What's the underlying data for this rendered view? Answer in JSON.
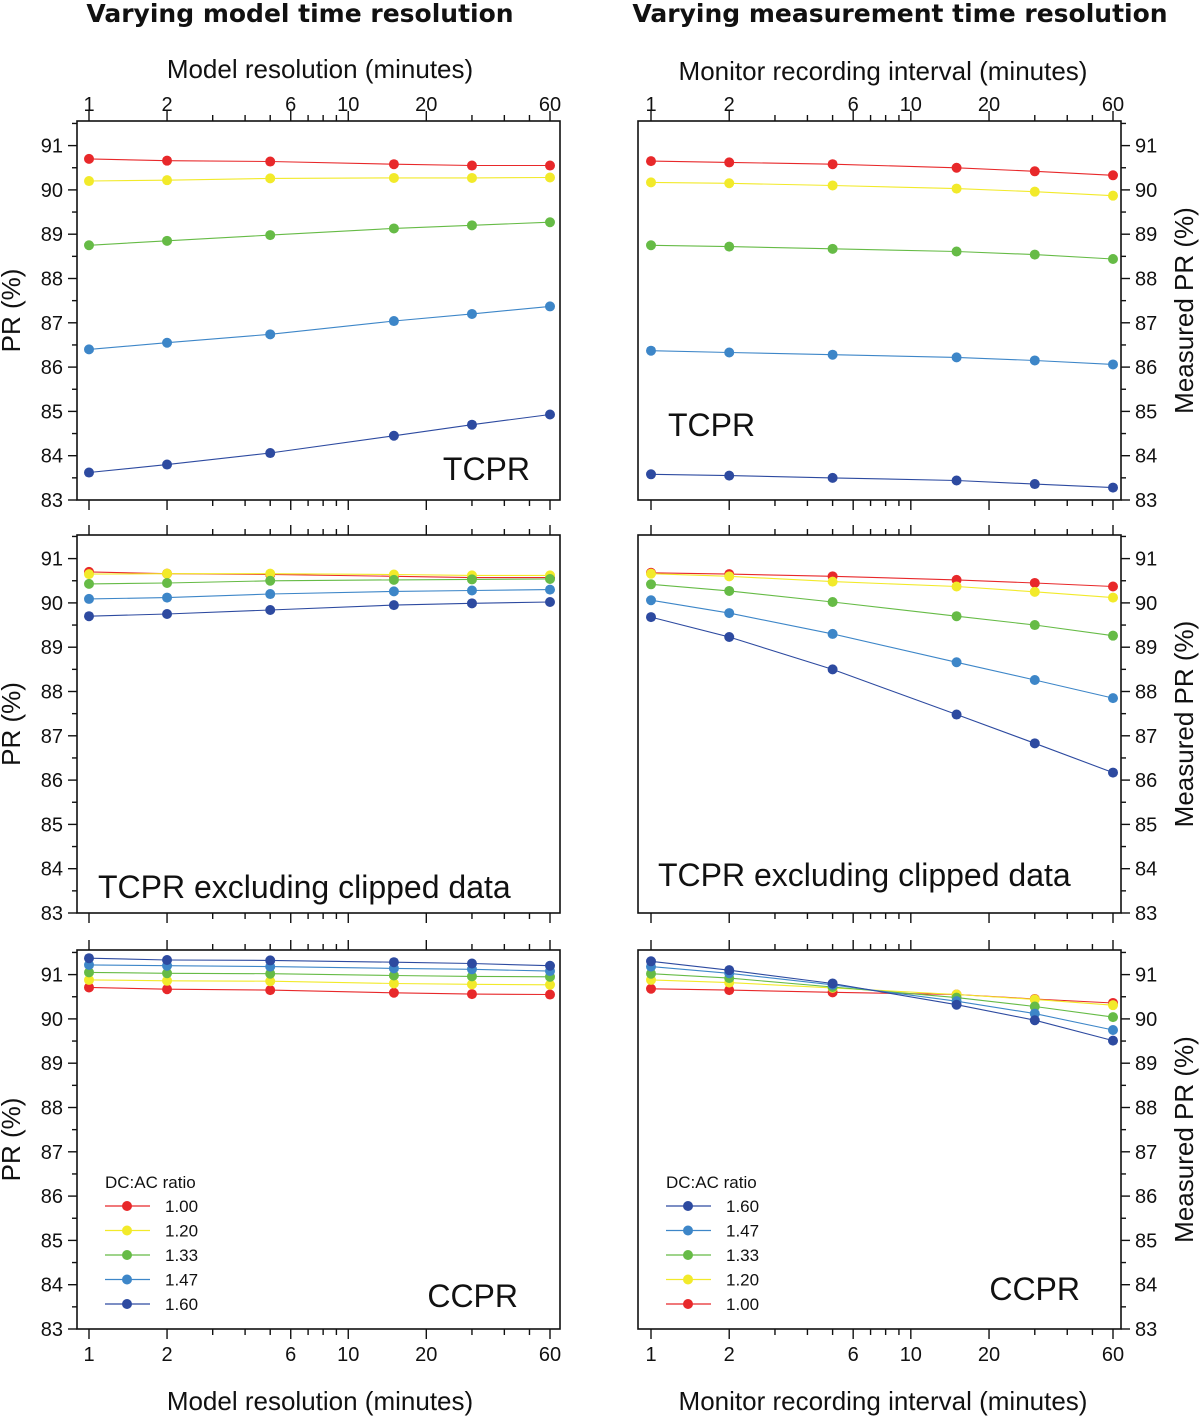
{
  "colors": {
    "1.00": "#e8282a",
    "1.20": "#f2ea2a",
    "1.33": "#66bb46",
    "1.47": "#3d86c8",
    "1.60": "#2d4aa0"
  },
  "columns": [
    {
      "title": "Varying model time resolution",
      "top_xlabel": "Model resolution (minutes)",
      "bottom_xlabel": "Model resolution (minutes)",
      "ylabel": "PR (%)"
    },
    {
      "title": "Varying measurement time resolution",
      "top_xlabel": "Monitor recording interval (minutes)",
      "bottom_xlabel": "Monitor recording interval (minutes)",
      "ylabel": "Measured PR (%)"
    }
  ],
  "legends": [
    {
      "title": "DC:AC ratio",
      "entries": [
        "1.00",
        "1.20",
        "1.33",
        "1.47",
        "1.60"
      ]
    },
    {
      "title": "DC:AC ratio",
      "entries": [
        "1.60",
        "1.47",
        "1.33",
        "1.20",
        "1.00"
      ]
    }
  ],
  "chart_data": [
    {
      "type": "line",
      "label": "TCPR",
      "column": 0,
      "row": 0,
      "x": [
        1,
        2,
        5,
        15,
        30,
        60
      ],
      "x_scale": "log",
      "xlim": [
        1,
        60
      ],
      "x_tick_values": [
        1,
        2,
        6,
        10,
        20,
        60
      ],
      "x_tick_labels": [
        "1",
        "2",
        "6",
        "10",
        "20",
        "60"
      ],
      "ylim": [
        83,
        91.5
      ],
      "y_ticks": [
        83,
        84,
        85,
        86,
        87,
        88,
        89,
        90,
        91
      ],
      "series": [
        {
          "name": "1.00",
          "values": [
            90.7,
            90.66,
            90.64,
            90.58,
            90.55,
            90.55
          ]
        },
        {
          "name": "1.20",
          "values": [
            90.2,
            90.22,
            90.26,
            90.27,
            90.27,
            90.28
          ]
        },
        {
          "name": "1.33",
          "values": [
            88.75,
            88.85,
            88.98,
            89.13,
            89.2,
            89.27
          ]
        },
        {
          "name": "1.47",
          "values": [
            86.4,
            86.55,
            86.74,
            87.04,
            87.2,
            87.37
          ]
        },
        {
          "name": "1.60",
          "values": [
            83.62,
            83.8,
            84.06,
            84.45,
            84.7,
            84.93
          ]
        }
      ]
    },
    {
      "type": "line",
      "label": "TCPR excluding clipped data",
      "column": 0,
      "row": 1,
      "x": [
        1,
        2,
        5,
        15,
        30,
        60
      ],
      "x_scale": "log",
      "xlim": [
        1,
        60
      ],
      "ylim": [
        83,
        91.5
      ],
      "y_ticks": [
        83,
        84,
        85,
        86,
        87,
        88,
        89,
        90,
        91
      ],
      "series": [
        {
          "name": "1.00",
          "values": [
            90.7,
            90.66,
            90.64,
            90.6,
            90.57,
            90.57
          ]
        },
        {
          "name": "1.20",
          "values": [
            90.65,
            90.66,
            90.66,
            90.64,
            90.62,
            90.62
          ]
        },
        {
          "name": "1.33",
          "values": [
            90.43,
            90.45,
            90.5,
            90.52,
            90.53,
            90.54
          ]
        },
        {
          "name": "1.47",
          "values": [
            90.09,
            90.12,
            90.2,
            90.26,
            90.28,
            90.3
          ]
        },
        {
          "name": "1.60",
          "values": [
            89.7,
            89.75,
            89.84,
            89.95,
            89.99,
            90.02
          ]
        }
      ]
    },
    {
      "type": "line",
      "label": "CCPR",
      "column": 0,
      "row": 2,
      "x": [
        1,
        2,
        5,
        15,
        30,
        60
      ],
      "x_scale": "log",
      "xlim": [
        1,
        60
      ],
      "x_tick_values": [
        1,
        2,
        6,
        10,
        20,
        60
      ],
      "x_tick_labels": [
        "1",
        "2",
        "6",
        "10",
        "20",
        "60"
      ],
      "ylim": [
        83,
        91.5
      ],
      "y_ticks": [
        83,
        84,
        85,
        86,
        87,
        88,
        89,
        90,
        91
      ],
      "series": [
        {
          "name": "1.00",
          "values": [
            90.71,
            90.67,
            90.65,
            90.59,
            90.56,
            90.55
          ]
        },
        {
          "name": "1.20",
          "values": [
            90.88,
            90.86,
            90.85,
            90.8,
            90.78,
            90.77
          ]
        },
        {
          "name": "1.33",
          "values": [
            91.05,
            91.03,
            91.02,
            90.98,
            90.96,
            90.95
          ]
        },
        {
          "name": "1.47",
          "values": [
            91.22,
            91.2,
            91.18,
            91.14,
            91.12,
            91.08
          ]
        },
        {
          "name": "1.60",
          "values": [
            91.37,
            91.33,
            91.32,
            91.28,
            91.25,
            91.2
          ]
        }
      ]
    },
    {
      "type": "line",
      "label": "TCPR",
      "column": 1,
      "row": 0,
      "x": [
        1,
        2,
        5,
        15,
        30,
        60
      ],
      "x_scale": "log",
      "xlim": [
        1,
        60
      ],
      "x_tick_values": [
        1,
        2,
        6,
        10,
        20,
        60
      ],
      "x_tick_labels": [
        "1",
        "2",
        "6",
        "10",
        "20",
        "60"
      ],
      "ylim": [
        83,
        91.5
      ],
      "y_ticks": [
        83,
        84,
        85,
        86,
        87,
        88,
        89,
        90,
        91
      ],
      "series": [
        {
          "name": "1.00",
          "values": [
            90.65,
            90.62,
            90.58,
            90.5,
            90.42,
            90.33
          ]
        },
        {
          "name": "1.20",
          "values": [
            90.17,
            90.15,
            90.1,
            90.03,
            89.96,
            89.87
          ]
        },
        {
          "name": "1.33",
          "values": [
            88.75,
            88.72,
            88.67,
            88.61,
            88.54,
            88.44
          ]
        },
        {
          "name": "1.47",
          "values": [
            86.37,
            86.33,
            86.28,
            86.22,
            86.15,
            86.06
          ]
        },
        {
          "name": "1.60",
          "values": [
            83.58,
            83.55,
            83.5,
            83.44,
            83.36,
            83.28
          ]
        }
      ]
    },
    {
      "type": "line",
      "label": "TCPR excluding clipped data",
      "column": 1,
      "row": 1,
      "x": [
        1,
        2,
        5,
        15,
        30,
        60
      ],
      "x_scale": "log",
      "xlim": [
        1,
        60
      ],
      "ylim": [
        83,
        91.5
      ],
      "y_ticks": [
        83,
        84,
        85,
        86,
        87,
        88,
        89,
        90,
        91
      ],
      "series": [
        {
          "name": "1.00",
          "values": [
            90.68,
            90.65,
            90.6,
            90.52,
            90.45,
            90.37
          ]
        },
        {
          "name": "1.20",
          "values": [
            90.66,
            90.6,
            90.48,
            90.37,
            90.25,
            90.12
          ]
        },
        {
          "name": "1.33",
          "values": [
            90.42,
            90.27,
            90.02,
            89.7,
            89.5,
            89.26
          ]
        },
        {
          "name": "1.47",
          "values": [
            90.06,
            89.77,
            89.3,
            88.66,
            88.26,
            87.85
          ]
        },
        {
          "name": "1.60",
          "values": [
            89.68,
            89.23,
            88.5,
            87.48,
            86.83,
            86.17
          ]
        }
      ]
    },
    {
      "type": "line",
      "label": "CCPR",
      "column": 1,
      "row": 2,
      "x": [
        1,
        2,
        5,
        15,
        30,
        60
      ],
      "x_scale": "log",
      "xlim": [
        1,
        60
      ],
      "x_tick_values": [
        1,
        2,
        6,
        10,
        20,
        60
      ],
      "x_tick_labels": [
        "1",
        "2",
        "6",
        "10",
        "20",
        "60"
      ],
      "ylim": [
        83,
        91.5
      ],
      "y_ticks": [
        83,
        84,
        85,
        86,
        87,
        88,
        89,
        90,
        91
      ],
      "series": [
        {
          "name": "1.00",
          "values": [
            90.68,
            90.65,
            90.6,
            90.55,
            90.45,
            90.36
          ]
        },
        {
          "name": "1.20",
          "values": [
            90.88,
            90.82,
            90.7,
            90.55,
            90.44,
            90.31
          ]
        },
        {
          "name": "1.33",
          "values": [
            91.02,
            90.92,
            90.72,
            90.48,
            90.28,
            90.04
          ]
        },
        {
          "name": "1.47",
          "values": [
            91.18,
            91.03,
            90.77,
            90.4,
            90.12,
            89.75
          ]
        },
        {
          "name": "1.60",
          "values": [
            91.3,
            91.1,
            90.8,
            90.32,
            89.97,
            89.51
          ]
        }
      ]
    }
  ]
}
